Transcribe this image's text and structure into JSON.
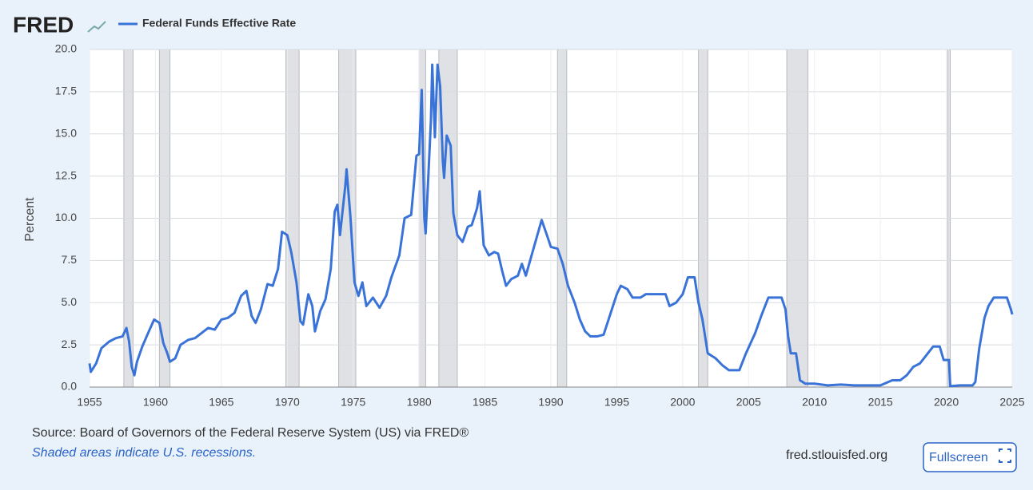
{
  "logo": "FRED",
  "source": "Source: Board of Governors of the Federal Reserve System (US) via FRED®",
  "note": "Shaded areas indicate U.S. recessions.",
  "site": "fred.stlouisfed.org",
  "button": {
    "label": "Fullscreen"
  },
  "chart_data": {
    "type": "line",
    "ylabel": "Percent",
    "xlim": [
      1955,
      2025
    ],
    "xticks": [
      1955,
      1960,
      1965,
      1970,
      1975,
      1980,
      1985,
      1990,
      1995,
      2000,
      2005,
      2010,
      2015,
      2020,
      2025
    ],
    "ylim": [
      0,
      20
    ],
    "yticks": [
      {
        "value": 0,
        "label": "0.0"
      },
      2.5,
      {
        "value": 5,
        "label": "5.0"
      },
      7.5,
      {
        "value": 10,
        "label": "10.0"
      },
      12.5,
      {
        "value": 15,
        "label": "15.0"
      },
      17.5,
      {
        "value": 20,
        "label": "20.0"
      }
    ],
    "grid": true,
    "recessions": [
      [
        1957.6,
        1958.3
      ],
      [
        1960.3,
        1961.1
      ],
      [
        1969.9,
        1970.9
      ],
      [
        1973.9,
        1975.2
      ],
      [
        1980.0,
        1980.5
      ],
      [
        1981.5,
        1982.9
      ],
      [
        1990.5,
        1991.2
      ],
      [
        2001.2,
        2001.9
      ],
      [
        2007.9,
        2009.5
      ],
      [
        2020.1,
        2020.3
      ]
    ],
    "x": [
      1955.0,
      1955.1,
      1955.5,
      1955.9,
      1956.5,
      1957.0,
      1957.5,
      1957.8,
      1958.0,
      1958.2,
      1958.4,
      1958.6,
      1959.0,
      1959.5,
      1959.9,
      1960.3,
      1960.6,
      1960.9,
      1961.1,
      1961.5,
      1961.9,
      1962.5,
      1963.0,
      1963.5,
      1964.0,
      1964.5,
      1965.0,
      1965.5,
      1966.0,
      1966.5,
      1966.9,
      1967.3,
      1967.6,
      1968.0,
      1968.5,
      1968.9,
      1969.3,
      1969.6,
      1970.0,
      1970.3,
      1970.7,
      1971.0,
      1971.2,
      1971.6,
      1971.9,
      1972.1,
      1972.5,
      1972.9,
      1973.3,
      1973.6,
      1973.8,
      1974.0,
      1974.4,
      1974.5,
      1974.8,
      1975.1,
      1975.4,
      1975.7,
      1976.0,
      1976.5,
      1977.0,
      1977.5,
      1977.9,
      1978.5,
      1978.9,
      1979.4,
      1979.8,
      1980.0,
      1980.2,
      1980.4,
      1980.5,
      1980.9,
      1981.0,
      1981.2,
      1981.4,
      1981.6,
      1981.8,
      1981.9,
      1982.1,
      1982.4,
      1982.6,
      1982.9,
      1983.3,
      1983.7,
      1984.0,
      1984.4,
      1984.6,
      1984.9,
      1985.3,
      1985.7,
      1986.0,
      1986.3,
      1986.6,
      1987.0,
      1987.5,
      1987.8,
      1988.1,
      1988.5,
      1988.9,
      1989.3,
      1989.7,
      1990.0,
      1990.5,
      1990.9,
      1991.3,
      1991.8,
      1992.2,
      1992.6,
      1993.0,
      1993.5,
      1994.0,
      1994.5,
      1995.0,
      1995.3,
      1995.8,
      1996.2,
      1996.8,
      1997.2,
      1998.0,
      1998.7,
      1999.0,
      1999.5,
      2000.0,
      2000.4,
      2000.9,
      2001.2,
      2001.5,
      2001.9,
      2002.5,
      2003.0,
      2003.5,
      2004.3,
      2004.8,
      2005.5,
      2006.0,
      2006.5,
      2007.5,
      2007.8,
      2008.0,
      2008.2,
      2008.6,
      2008.9,
      2009.3,
      2010.0,
      2011.0,
      2012.0,
      2013.0,
      2014.0,
      2015.0,
      2015.9,
      2016.5,
      2017.0,
      2017.5,
      2018.0,
      2018.5,
      2019.0,
      2019.5,
      2019.8,
      2020.2,
      2020.3,
      2021.0,
      2022.0,
      2022.2,
      2022.5,
      2022.9,
      2023.2,
      2023.6,
      2024.6,
      2024.9,
      2025.0
    ],
    "series": [
      {
        "name": "Federal Funds Effective Rate",
        "color": "#3a73d8",
        "values": [
          1.4,
          0.9,
          1.4,
          2.3,
          2.7,
          2.9,
          3.0,
          3.5,
          2.7,
          1.2,
          0.7,
          1.5,
          2.4,
          3.3,
          4.0,
          3.8,
          2.6,
          2.0,
          1.5,
          1.7,
          2.5,
          2.8,
          2.9,
          3.2,
          3.5,
          3.4,
          4.0,
          4.1,
          4.4,
          5.4,
          5.7,
          4.2,
          3.8,
          4.6,
          6.1,
          6.0,
          7.0,
          9.2,
          9.0,
          8.0,
          6.2,
          3.9,
          3.7,
          5.5,
          4.8,
          3.3,
          4.5,
          5.2,
          7.0,
          10.4,
          10.8,
          9.0,
          11.9,
          12.9,
          10.0,
          6.2,
          5.4,
          6.2,
          4.8,
          5.3,
          4.7,
          5.4,
          6.5,
          7.8,
          10.0,
          10.2,
          13.7,
          13.8,
          17.6,
          10.0,
          9.1,
          15.8,
          19.1,
          14.8,
          19.1,
          17.8,
          13.4,
          12.4,
          14.9,
          14.3,
          10.3,
          9.0,
          8.6,
          9.5,
          9.6,
          10.6,
          11.6,
          8.4,
          7.8,
          8.0,
          7.9,
          6.9,
          6.0,
          6.4,
          6.6,
          7.3,
          6.6,
          7.7,
          8.8,
          9.9,
          9.0,
          8.3,
          8.2,
          7.3,
          6.0,
          5.0,
          4.0,
          3.3,
          3.0,
          3.0,
          3.1,
          4.3,
          5.5,
          6.0,
          5.8,
          5.3,
          5.3,
          5.5,
          5.5,
          5.5,
          4.8,
          5.0,
          5.5,
          6.5,
          6.5,
          5.0,
          4.0,
          2.0,
          1.7,
          1.3,
          1.0,
          1.0,
          2.0,
          3.2,
          4.3,
          5.3,
          5.3,
          4.6,
          3.0,
          2.0,
          2.0,
          0.4,
          0.2,
          0.2,
          0.1,
          0.15,
          0.1,
          0.1,
          0.1,
          0.4,
          0.4,
          0.7,
          1.2,
          1.4,
          1.9,
          2.4,
          2.4,
          1.6,
          1.6,
          0.05,
          0.1,
          0.1,
          0.3,
          2.3,
          4.1,
          4.8,
          5.3,
          5.3,
          4.6,
          4.3
        ]
      }
    ]
  }
}
